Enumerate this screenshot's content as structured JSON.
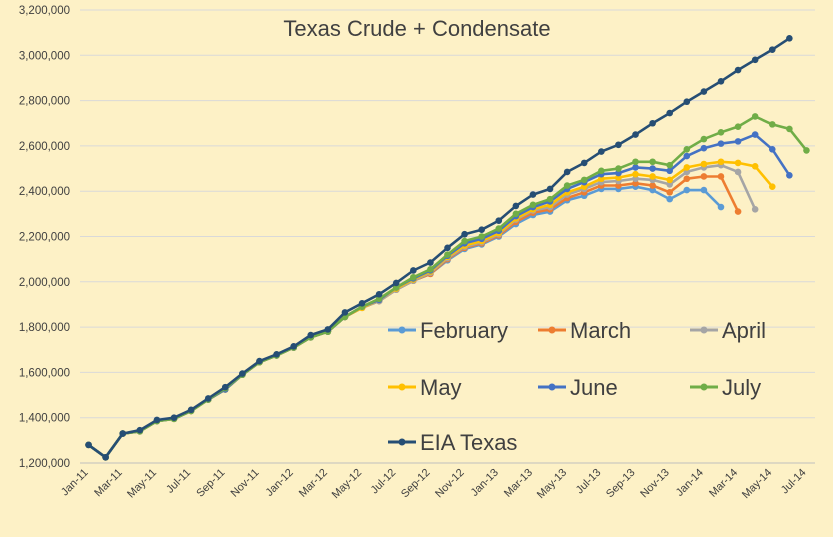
{
  "chart_data": {
    "type": "line",
    "title": "Texas Crude + Condensate",
    "xlabel": "",
    "ylabel": "",
    "ylim": [
      1200000,
      3200000
    ],
    "yticks": [
      "1,200,000",
      "1,400,000",
      "1,600,000",
      "1,800,000",
      "2,000,000",
      "2,200,000",
      "2,400,000",
      "2,600,000",
      "2,800,000",
      "3,000,000",
      "3,200,000"
    ],
    "ytick_values": [
      1200000,
      1400000,
      1600000,
      1800000,
      2000000,
      2200000,
      2400000,
      2600000,
      2800000,
      3000000,
      3200000
    ],
    "months": [
      "Jan-11",
      "Feb-11",
      "Mar-11",
      "Apr-11",
      "May-11",
      "Jun-11",
      "Jul-11",
      "Aug-11",
      "Sep-11",
      "Oct-11",
      "Nov-11",
      "Dec-11",
      "Jan-12",
      "Feb-12",
      "Mar-12",
      "Apr-12",
      "May-12",
      "Jun-12",
      "Jul-12",
      "Aug-12",
      "Sep-12",
      "Oct-12",
      "Nov-12",
      "Dec-12",
      "Jan-13",
      "Feb-13",
      "Mar-13",
      "Apr-13",
      "May-13",
      "Jun-13",
      "Jul-13",
      "Aug-13",
      "Sep-13",
      "Oct-13",
      "Nov-13",
      "Dec-13",
      "Jan-14",
      "Feb-14",
      "Mar-14",
      "Apr-14",
      "May-14",
      "Jun-14",
      "Jul-14"
    ],
    "xtick_labels": [
      "Jan-11",
      "Mar-11",
      "May-11",
      "Jul-11",
      "Sep-11",
      "Nov-11",
      "Jan-12",
      "Mar-12",
      "May-12",
      "Jul-12",
      "Sep-12",
      "Nov-12",
      "Jan-13",
      "Mar-13",
      "May-13",
      "Jul-13",
      "Sep-13",
      "Nov-13",
      "Jan-14",
      "Mar-14",
      "May-14",
      "Jul-14"
    ],
    "grid": true,
    "legend_position": "lower-right",
    "series": [
      {
        "name": "February",
        "color": "#5b9bd5",
        "values": [
          1280000,
          1225000,
          1330000,
          1340000,
          1385000,
          1395000,
          1430000,
          1480000,
          1525000,
          1590000,
          1645000,
          1675000,
          1710000,
          1755000,
          1780000,
          1845000,
          1885000,
          1915000,
          1965000,
          2005000,
          2035000,
          2095000,
          2145000,
          2165000,
          2200000,
          2255000,
          2295000,
          2310000,
          2360000,
          2380000,
          2410000,
          2410000,
          2420000,
          2405000,
          2365000,
          2405000,
          2405000,
          2330000
        ]
      },
      {
        "name": "March",
        "color": "#ed7d31",
        "values": [
          1280000,
          1225000,
          1330000,
          1340000,
          1385000,
          1395000,
          1430000,
          1480000,
          1525000,
          1590000,
          1645000,
          1675000,
          1710000,
          1755000,
          1780000,
          1845000,
          1885000,
          1915000,
          1965000,
          2005000,
          2035000,
          2100000,
          2150000,
          2170000,
          2205000,
          2265000,
          2305000,
          2320000,
          2370000,
          2395000,
          2425000,
          2425000,
          2435000,
          2425000,
          2395000,
          2455000,
          2465000,
          2465000,
          2310000
        ]
      },
      {
        "name": "April",
        "color": "#a5a5a5",
        "values": [
          1280000,
          1225000,
          1330000,
          1340000,
          1385000,
          1395000,
          1430000,
          1480000,
          1525000,
          1590000,
          1645000,
          1675000,
          1710000,
          1755000,
          1780000,
          1845000,
          1885000,
          1915000,
          1965000,
          2005000,
          2040000,
          2105000,
          2155000,
          2175000,
          2210000,
          2275000,
          2315000,
          2330000,
          2385000,
          2410000,
          2440000,
          2445000,
          2455000,
          2450000,
          2430000,
          2485000,
          2505000,
          2515000,
          2485000,
          2320000
        ]
      },
      {
        "name": "May",
        "color": "#ffc000",
        "values": [
          1280000,
          1225000,
          1330000,
          1340000,
          1385000,
          1395000,
          1430000,
          1480000,
          1525000,
          1590000,
          1645000,
          1675000,
          1710000,
          1755000,
          1780000,
          1845000,
          1885000,
          1920000,
          1970000,
          2010000,
          2045000,
          2110000,
          2160000,
          2180000,
          2215000,
          2280000,
          2320000,
          2340000,
          2395000,
          2420000,
          2455000,
          2460000,
          2475000,
          2465000,
          2450000,
          2505000,
          2520000,
          2530000,
          2525000,
          2510000,
          2420000
        ]
      },
      {
        "name": "June",
        "color": "#4472c4",
        "values": [
          1280000,
          1225000,
          1330000,
          1340000,
          1385000,
          1395000,
          1430000,
          1480000,
          1525000,
          1590000,
          1645000,
          1675000,
          1710000,
          1755000,
          1780000,
          1845000,
          1890000,
          1920000,
          1975000,
          2015000,
          2050000,
          2115000,
          2170000,
          2190000,
          2225000,
          2290000,
          2330000,
          2355000,
          2410000,
          2440000,
          2475000,
          2480000,
          2505000,
          2500000,
          2490000,
          2555000,
          2590000,
          2610000,
          2620000,
          2650000,
          2585000,
          2470000
        ]
      },
      {
        "name": "July",
        "color": "#70ad47",
        "values": [
          1280000,
          1225000,
          1330000,
          1340000,
          1385000,
          1395000,
          1430000,
          1480000,
          1530000,
          1590000,
          1645000,
          1675000,
          1710000,
          1755000,
          1780000,
          1845000,
          1890000,
          1925000,
          1975000,
          2020000,
          2055000,
          2120000,
          2180000,
          2200000,
          2235000,
          2300000,
          2340000,
          2365000,
          2425000,
          2450000,
          2490000,
          2500000,
          2530000,
          2530000,
          2515000,
          2585000,
          2630000,
          2660000,
          2685000,
          2730000,
          2695000,
          2675000,
          2580000
        ]
      },
      {
        "name": "EIA Texas",
        "color": "#264e74",
        "values": [
          1280000,
          1225000,
          1330000,
          1345000,
          1390000,
          1400000,
          1435000,
          1485000,
          1535000,
          1595000,
          1650000,
          1680000,
          1715000,
          1765000,
          1790000,
          1865000,
          1905000,
          1945000,
          1995000,
          2050000,
          2085000,
          2150000,
          2210000,
          2230000,
          2270000,
          2335000,
          2385000,
          2410000,
          2485000,
          2525000,
          2575000,
          2605000,
          2650000,
          2700000,
          2745000,
          2795000,
          2840000,
          2885000,
          2935000,
          2980000,
          3025000,
          3075000
        ]
      }
    ]
  }
}
